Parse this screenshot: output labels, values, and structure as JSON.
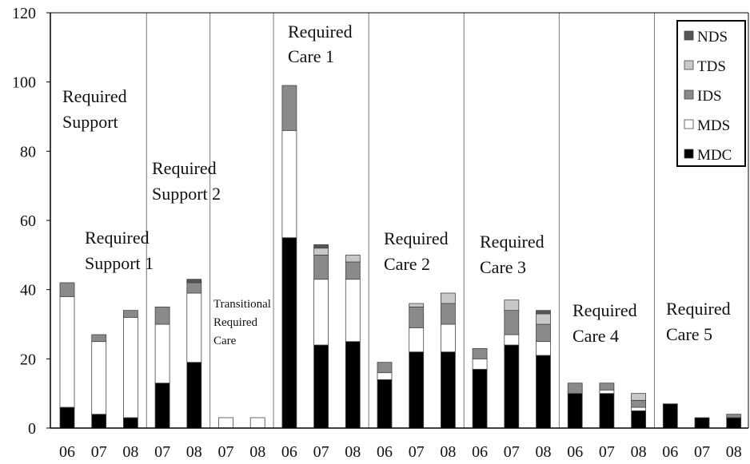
{
  "chart_data": {
    "type": "stacked_bar",
    "categories": [
      "06",
      "07",
      "08",
      "07",
      "08",
      "07",
      "08",
      "06",
      "07",
      "08",
      "06",
      "07",
      "08",
      "06",
      "07",
      "08",
      "06",
      "07",
      "08",
      "06",
      "07",
      "08"
    ],
    "series": [
      {
        "name": "MDC",
        "color": "#000000",
        "values": [
          6,
          4,
          3,
          13,
          19,
          0,
          0,
          55,
          24,
          25,
          14,
          22,
          22,
          17,
          24,
          21,
          10,
          10,
          5,
          7,
          3,
          3
        ]
      },
      {
        "name": "MDS",
        "color": "#ffffff",
        "values": [
          32,
          21,
          29,
          17,
          20,
          3,
          3,
          31,
          19,
          18,
          2,
          7,
          8,
          3,
          3,
          4,
          0,
          1,
          1,
          0,
          0,
          0
        ]
      },
      {
        "name": "IDS",
        "color": "#8a8a8a",
        "values": [
          4,
          2,
          2,
          5,
          3,
          0,
          0,
          13,
          7,
          5,
          3,
          6,
          6,
          3,
          7,
          5,
          3,
          2,
          2,
          0,
          0,
          1
        ]
      },
      {
        "name": "TDS",
        "color": "#c8c8c8",
        "values": [
          0,
          0,
          0,
          0,
          0,
          0,
          0,
          0,
          2,
          2,
          0,
          1,
          3,
          0,
          3,
          3,
          0,
          0,
          2,
          0,
          0,
          0
        ]
      },
      {
        "name": "NDS",
        "color": "#555555",
        "values": [
          0,
          0,
          0,
          0,
          1,
          0,
          0,
          0,
          1,
          0,
          0,
          0,
          0,
          0,
          0,
          1,
          0,
          0,
          0,
          0,
          0,
          0
        ]
      }
    ],
    "annotations": [
      [
        "Required",
        "Support"
      ],
      [
        "Required",
        "Support 1"
      ],
      [
        "Required",
        "Support 2"
      ],
      [
        "Transitional",
        "Required",
        "Care"
      ],
      [
        "Required",
        "Care 1"
      ],
      [
        "Required",
        "Care 2"
      ],
      [
        "Required",
        "Care 3"
      ],
      [
        "Required",
        "Care 4"
      ],
      [
        "Required",
        "Care 5"
      ]
    ],
    "ylim": [
      0,
      120
    ],
    "yticks": [
      0,
      20,
      40,
      60,
      80,
      100,
      120
    ],
    "legend": "top-right"
  }
}
